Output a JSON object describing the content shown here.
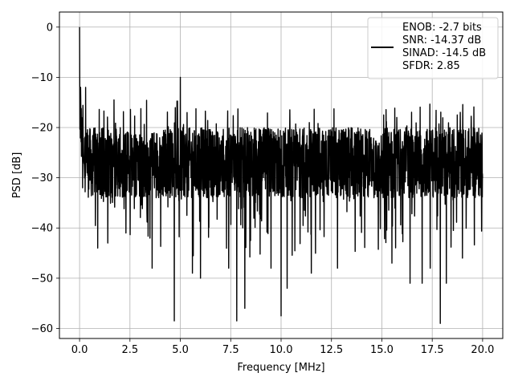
{
  "chart_data": {
    "type": "line",
    "title": "",
    "xlabel": "Frequency [MHz]",
    "ylabel": "PSD [dB]",
    "xlim": [
      -1.0,
      21.0
    ],
    "ylim": [
      -62.0,
      3.0
    ],
    "grid": true,
    "legend_placement": "upper right",
    "x_tick_labels": [
      "0.0",
      "2.5",
      "5.0",
      "7.5",
      "10.0",
      "12.5",
      "15.0",
      "17.5",
      "20.0"
    ],
    "x_ticks": [
      0,
      2.5,
      5,
      7.5,
      10,
      12.5,
      15,
      17.5,
      20
    ],
    "y_tick_labels": [
      "0",
      "−10",
      "−20",
      "−30",
      "−40",
      "−50",
      "−60"
    ],
    "y_ticks": [
      0,
      -10,
      -20,
      -30,
      -40,
      -50,
      -60
    ],
    "legend": {
      "lines": [
        "ENOB: -2.7 bits",
        "SNR: -14.37 dB",
        "SINAD: -14.5 dB",
        "SFDR: 2.85"
      ]
    },
    "series": [
      {
        "color": "#000000",
        "x_range": [
          0,
          20
        ],
        "noise_floor_db": -27,
        "notable_points": [
          {
            "x": 0.0,
            "y": 0.0
          },
          {
            "x": 0.05,
            "y": -12.0
          },
          {
            "x": 0.1,
            "y": -18.0
          },
          {
            "x": 0.15,
            "y": -32.0
          },
          {
            "x": 0.3,
            "y": -12.0
          },
          {
            "x": 0.9,
            "y": -44.0
          },
          {
            "x": 1.4,
            "y": -43.0
          },
          {
            "x": 2.3,
            "y": -41.0
          },
          {
            "x": 3.6,
            "y": -48.0
          },
          {
            "x": 4.7,
            "y": -58.5
          },
          {
            "x": 5.0,
            "y": -10.0
          },
          {
            "x": 5.6,
            "y": -49.0
          },
          {
            "x": 6.0,
            "y": -50.0
          },
          {
            "x": 7.4,
            "y": -48.0
          },
          {
            "x": 7.8,
            "y": -58.5
          },
          {
            "x": 8.2,
            "y": -56.0
          },
          {
            "x": 9.5,
            "y": -48.0
          },
          {
            "x": 10.0,
            "y": -57.5
          },
          {
            "x": 10.3,
            "y": -52.0
          },
          {
            "x": 11.5,
            "y": -49.0
          },
          {
            "x": 12.8,
            "y": -48.0
          },
          {
            "x": 15.5,
            "y": -47.0
          },
          {
            "x": 16.4,
            "y": -51.0
          },
          {
            "x": 17.0,
            "y": -51.0
          },
          {
            "x": 17.4,
            "y": -48.0
          },
          {
            "x": 17.9,
            "y": -59.0
          },
          {
            "x": 18.2,
            "y": -51.0
          },
          {
            "x": 19.0,
            "y": -46.0
          },
          {
            "x": 20.0,
            "y": -30.0
          }
        ]
      }
    ]
  }
}
